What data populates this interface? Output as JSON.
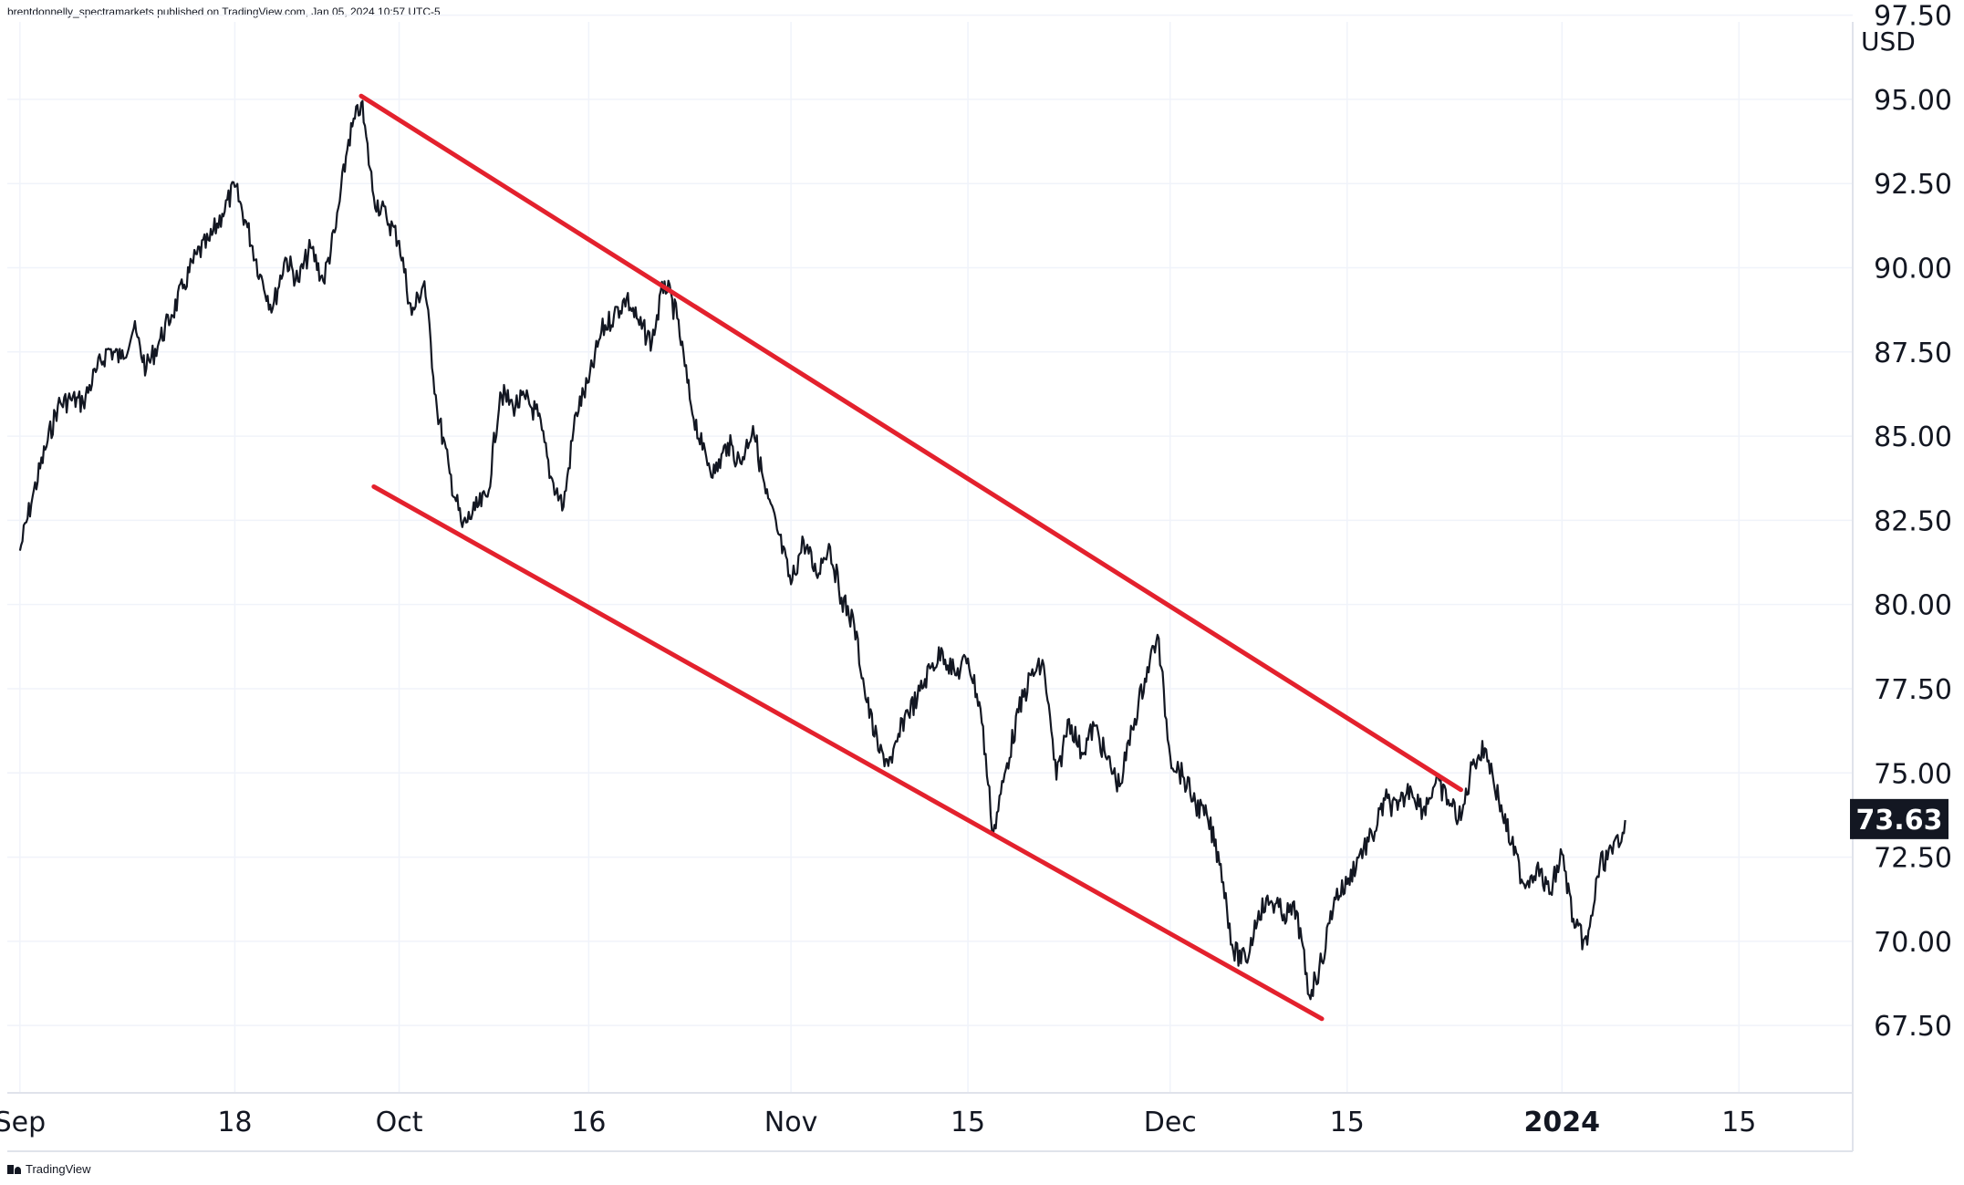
{
  "header": {
    "attribution": "brentdonnelly_spectramarkets published on TradingView.com, Jan 05, 2024 10:57 UTC-5"
  },
  "footer": {
    "logo_text": "TradingView"
  },
  "chart_data": {
    "type": "line",
    "currency": "USD",
    "last_price": 73.63,
    "last_price_label": "73.63",
    "ylim": [
      65.5,
      97.3
    ],
    "y_ticks": [
      67.5,
      70.0,
      72.5,
      75.0,
      77.5,
      80.0,
      82.5,
      85.0,
      87.5,
      90.0,
      92.5,
      95.0,
      97.5
    ],
    "y_tick_labels": [
      "67.50",
      "70.00",
      "72.50",
      "75.00",
      "77.50",
      "80.00",
      "82.50",
      "85.00",
      "87.50",
      "90.00",
      "92.50",
      "95.00",
      "97.50"
    ],
    "xlim": [
      "2023-08-31",
      "2024-01-24"
    ],
    "x_ticks": [
      {
        "date": "2023-09-01",
        "label": "Sep",
        "bold": false
      },
      {
        "date": "2023-09-18",
        "label": "18",
        "bold": false
      },
      {
        "date": "2023-10-01",
        "label": "Oct",
        "bold": false
      },
      {
        "date": "2023-10-16",
        "label": "16",
        "bold": false
      },
      {
        "date": "2023-11-01",
        "label": "Nov",
        "bold": false
      },
      {
        "date": "2023-11-15",
        "label": "15",
        "bold": false
      },
      {
        "date": "2023-12-01",
        "label": "Dec",
        "bold": false
      },
      {
        "date": "2023-12-15",
        "label": "15",
        "bold": false
      },
      {
        "date": "2024-01-01",
        "label": "2024",
        "bold": true
      },
      {
        "date": "2024-01-15",
        "label": "15",
        "bold": false
      }
    ],
    "grid": true,
    "series": [
      {
        "color": "#131722",
        "points": [
          [
            "2023-09-01",
            81.6
          ],
          [
            "2023-09-02",
            83.2
          ],
          [
            "2023-09-03",
            84.6
          ],
          [
            "2023-09-04",
            85.9
          ],
          [
            "2023-09-05",
            86.1
          ],
          [
            "2023-09-06",
            86.0
          ],
          [
            "2023-09-07",
            86.9
          ],
          [
            "2023-09-08",
            87.6
          ],
          [
            "2023-09-09",
            87.3
          ],
          [
            "2023-09-10",
            88.2
          ],
          [
            "2023-09-11",
            87.0
          ],
          [
            "2023-09-12",
            87.8
          ],
          [
            "2023-09-13",
            88.6
          ],
          [
            "2023-09-14",
            89.5
          ],
          [
            "2023-09-15",
            90.4
          ],
          [
            "2023-09-16",
            90.8
          ],
          [
            "2023-09-17",
            91.6
          ],
          [
            "2023-09-18",
            92.4
          ],
          [
            "2023-09-19",
            91.2
          ],
          [
            "2023-09-20",
            89.8
          ],
          [
            "2023-09-21",
            88.8
          ],
          [
            "2023-09-22",
            90.3
          ],
          [
            "2023-09-23",
            89.6
          ],
          [
            "2023-09-24",
            90.6
          ],
          [
            "2023-09-25",
            89.6
          ],
          [
            "2023-09-26",
            91.2
          ],
          [
            "2023-09-27",
            93.8
          ],
          [
            "2023-09-28",
            94.9
          ],
          [
            "2023-09-29",
            92.1
          ],
          [
            "2023-09-30",
            91.5
          ],
          [
            "2023-10-01",
            90.8
          ],
          [
            "2023-10-02",
            88.6
          ],
          [
            "2023-10-03",
            89.6
          ],
          [
            "2023-10-04",
            85.8
          ],
          [
            "2023-10-05",
            83.9
          ],
          [
            "2023-10-06",
            82.3
          ],
          [
            "2023-10-07",
            82.8
          ],
          [
            "2023-10-08",
            83.2
          ],
          [
            "2023-10-09",
            86.3
          ],
          [
            "2023-10-10",
            85.9
          ],
          [
            "2023-10-11",
            86.1
          ],
          [
            "2023-10-12",
            85.6
          ],
          [
            "2023-10-13",
            83.8
          ],
          [
            "2023-10-14",
            82.9
          ],
          [
            "2023-10-15",
            85.7
          ],
          [
            "2023-10-16",
            86.6
          ],
          [
            "2023-10-17",
            88.1
          ],
          [
            "2023-10-18",
            88.6
          ],
          [
            "2023-10-19",
            89.1
          ],
          [
            "2023-10-20",
            88.3
          ],
          [
            "2023-10-21",
            87.8
          ],
          [
            "2023-10-22",
            89.6
          ],
          [
            "2023-10-23",
            88.5
          ],
          [
            "2023-10-24",
            86.1
          ],
          [
            "2023-10-25",
            84.6
          ],
          [
            "2023-10-26",
            83.9
          ],
          [
            "2023-10-27",
            84.8
          ],
          [
            "2023-10-28",
            84.2
          ],
          [
            "2023-10-29",
            85.3
          ],
          [
            "2023-10-30",
            83.3
          ],
          [
            "2023-10-31",
            82.1
          ],
          [
            "2023-11-01",
            80.6
          ],
          [
            "2023-11-02",
            81.9
          ],
          [
            "2023-11-03",
            80.9
          ],
          [
            "2023-11-04",
            81.8
          ],
          [
            "2023-11-05",
            80.2
          ],
          [
            "2023-11-06",
            79.4
          ],
          [
            "2023-11-07",
            77.1
          ],
          [
            "2023-11-08",
            75.6
          ],
          [
            "2023-11-09",
            75.3
          ],
          [
            "2023-11-10",
            76.7
          ],
          [
            "2023-11-11",
            77.2
          ],
          [
            "2023-11-12",
            78.1
          ],
          [
            "2023-11-13",
            78.6
          ],
          [
            "2023-11-14",
            77.9
          ],
          [
            "2023-11-15",
            78.4
          ],
          [
            "2023-11-16",
            76.9
          ],
          [
            "2023-11-17",
            73.2
          ],
          [
            "2023-11-18",
            75.1
          ],
          [
            "2023-11-19",
            76.8
          ],
          [
            "2023-11-20",
            77.9
          ],
          [
            "2023-11-21",
            78.2
          ],
          [
            "2023-11-22",
            74.8
          ],
          [
            "2023-11-23",
            76.6
          ],
          [
            "2023-11-24",
            75.6
          ],
          [
            "2023-11-25",
            76.4
          ],
          [
            "2023-11-26",
            75.4
          ],
          [
            "2023-11-27",
            74.6
          ],
          [
            "2023-11-28",
            76.3
          ],
          [
            "2023-11-29",
            77.8
          ],
          [
            "2023-11-30",
            79.1
          ],
          [
            "2023-12-01",
            75.5
          ],
          [
            "2023-12-02",
            74.9
          ],
          [
            "2023-12-03",
            74.1
          ],
          [
            "2023-12-04",
            73.6
          ],
          [
            "2023-12-05",
            72.3
          ],
          [
            "2023-12-06",
            69.7
          ],
          [
            "2023-12-07",
            69.4
          ],
          [
            "2023-12-08",
            70.9
          ],
          [
            "2023-12-09",
            71.2
          ],
          [
            "2023-12-10",
            70.8
          ],
          [
            "2023-12-11",
            70.9
          ],
          [
            "2023-12-12",
            68.4
          ],
          [
            "2023-12-13",
            69.4
          ],
          [
            "2023-12-14",
            71.3
          ],
          [
            "2023-12-15",
            71.7
          ],
          [
            "2023-12-16",
            72.6
          ],
          [
            "2023-12-17",
            73.1
          ],
          [
            "2023-12-18",
            74.2
          ],
          [
            "2023-12-19",
            73.9
          ],
          [
            "2023-12-20",
            74.6
          ],
          [
            "2023-12-21",
            73.9
          ],
          [
            "2023-12-22",
            74.7
          ],
          [
            "2023-12-23",
            74.2
          ],
          [
            "2023-12-24",
            73.6
          ],
          [
            "2023-12-25",
            75.4
          ],
          [
            "2023-12-26",
            75.7
          ],
          [
            "2023-12-27",
            74.2
          ],
          [
            "2023-12-28",
            72.9
          ],
          [
            "2023-12-29",
            71.7
          ],
          [
            "2023-12-30",
            72.2
          ],
          [
            "2023-12-31",
            71.4
          ],
          [
            "2024-01-01",
            72.6
          ],
          [
            "2024-01-02",
            70.4
          ],
          [
            "2024-01-03",
            69.9
          ],
          [
            "2024-01-04",
            72.3
          ],
          [
            "2024-01-05",
            72.6
          ],
          [
            "2024-01-06",
            73.6
          ]
        ]
      }
    ],
    "channel_lines": [
      {
        "name": "upper",
        "color": "#e3212d",
        "start": [
          "2023-09-28",
          95.1
        ],
        "end": [
          "2023-12-24",
          74.5
        ]
      },
      {
        "name": "lower",
        "color": "#e3212d",
        "start": [
          "2023-09-29",
          83.5
        ],
        "end": [
          "2023-12-13",
          67.7
        ]
      }
    ]
  }
}
